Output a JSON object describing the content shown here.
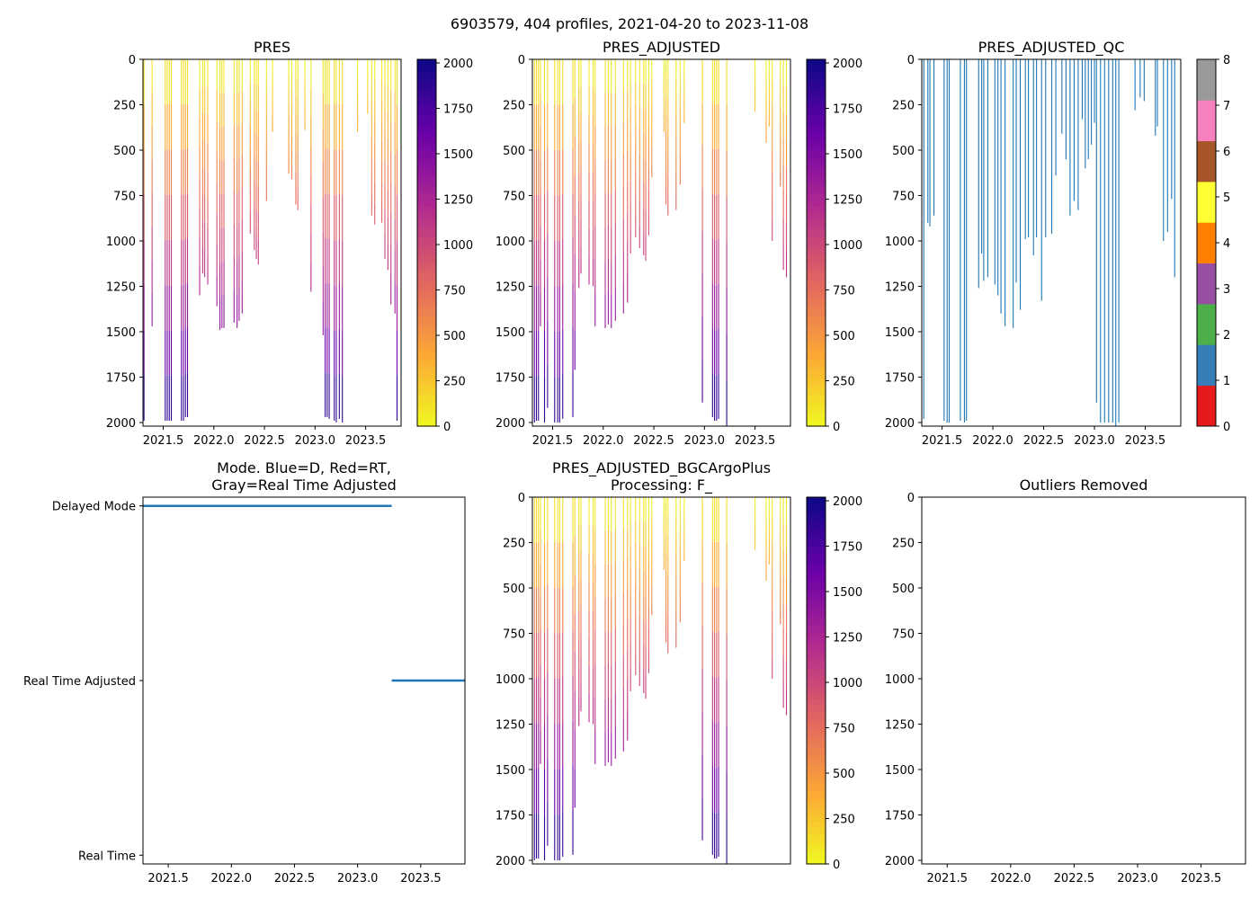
{
  "figure": {
    "suptitle": "6903579, 404 profiles, 2021-04-20 to 2023-11-08"
  },
  "colors": {
    "frame": "#000000",
    "mode_line": "#1f77b4",
    "qc_profile": "#1f77b4",
    "plasma_stops": [
      "#f0f921",
      "#fca636",
      "#e16462",
      "#b12a90",
      "#6a00a8",
      "#0d0887"
    ],
    "qc_colors": [
      "#e41a1c",
      "#377eb8",
      "#4daf4a",
      "#984ea3",
      "#ff7f00",
      "#ffff33",
      "#a65628",
      "#f781bf",
      "#999999"
    ]
  },
  "chart_data": [
    {
      "id": "pres",
      "type": "heatmap",
      "title": "PRES",
      "xlim": [
        2021.3,
        2023.85
      ],
      "ylim": [
        2020,
        0
      ],
      "xticks": [
        2021.5,
        2022.0,
        2022.5,
        2023.0,
        2023.5
      ],
      "xtick_labels": [
        "2021.5",
        "2022.0",
        "2022.5",
        "2023.0",
        "2023.5"
      ],
      "yticks": [
        0,
        250,
        500,
        750,
        1000,
        1250,
        1500,
        1750,
        2000
      ],
      "ytick_labels": [
        "0",
        "250",
        "500",
        "750",
        "1000",
        "1250",
        "1500",
        "1750",
        "2000"
      ],
      "profiles": {
        "t": [
          2021.31,
          2021.39,
          2021.52,
          2021.54,
          2021.56,
          2021.58,
          2021.68,
          2021.7,
          2021.72,
          2021.74,
          2021.86,
          2021.89,
          2021.91,
          2021.94,
          2022.03,
          2022.06,
          2022.08,
          2022.1,
          2022.2,
          2022.23,
          2022.25,
          2022.28,
          2022.36,
          2022.4,
          2022.42,
          2022.44,
          2022.52,
          2022.58,
          2022.74,
          2022.77,
          2022.81,
          2022.83,
          2022.9,
          2022.96,
          2023.08,
          2023.1,
          2023.12,
          2023.14,
          2023.19,
          2023.21,
          2023.24,
          2023.27,
          2023.42,
          2023.52,
          2023.56,
          2023.59,
          2023.66,
          2023.69,
          2023.72,
          2023.75,
          2023.79,
          2023.81
        ],
        "depth": [
          1990,
          1470,
          1990,
          1990,
          1990,
          1990,
          1990,
          1990,
          1970,
          1970,
          1300,
          1180,
          1200,
          1240,
          1360,
          1490,
          1480,
          1480,
          1450,
          1480,
          1440,
          1400,
          960,
          1050,
          1100,
          1130,
          780,
          400,
          630,
          660,
          800,
          830,
          390,
          1280,
          1520,
          1970,
          1970,
          1980,
          1990,
          2000,
          1980,
          2000,
          400,
          300,
          860,
          910,
          900,
          1100,
          1160,
          1350,
          1400,
          1990
        ]
      },
      "colorbar": {
        "kind": "continuous",
        "range": [
          0,
          2020
        ],
        "ticks": [
          0,
          250,
          500,
          750,
          1000,
          1250,
          1500,
          1750,
          2000
        ],
        "tick_labels": [
          "0",
          "250",
          "500",
          "750",
          "1000",
          "1250",
          "1500",
          "1750",
          "2000"
        ]
      }
    },
    {
      "id": "pres_adj",
      "type": "heatmap",
      "title": "PRES_ADJUSTED",
      "xlim": [
        2021.3,
        2023.85
      ],
      "ylim": [
        2020,
        0
      ],
      "xticks": [
        2021.5,
        2022.0,
        2022.5,
        2023.0,
        2023.5
      ],
      "xtick_labels": [
        "2021.5",
        "2022.0",
        "2022.5",
        "2023.0",
        "2023.5"
      ],
      "yticks": [
        0,
        250,
        500,
        750,
        1000,
        1250,
        1500,
        1750,
        2000
      ],
      "ytick_labels": [
        "0",
        "250",
        "500",
        "750",
        "1000",
        "1250",
        "1500",
        "1750",
        "2000"
      ],
      "profiles": {
        "t": [
          2021.32,
          2021.34,
          2021.36,
          2021.38,
          2021.42,
          2021.45,
          2021.52,
          2021.55,
          2021.57,
          2021.6,
          2021.7,
          2021.72,
          2021.76,
          2021.78,
          2021.86,
          2021.9,
          2021.92,
          2022.02,
          2022.05,
          2022.08,
          2022.12,
          2022.2,
          2022.24,
          2022.27,
          2022.32,
          2022.36,
          2022.4,
          2022.42,
          2022.45,
          2022.48,
          2022.6,
          2022.62,
          2022.64,
          2022.72,
          2022.76,
          2022.8,
          2022.98,
          2023.08,
          2023.1,
          2023.12,
          2023.14,
          2023.22,
          2023.5,
          2023.61,
          2023.64,
          2023.67,
          2023.75,
          2023.78,
          2023.81
        ],
        "depth": [
          2000,
          1990,
          1990,
          1470,
          2000,
          1920,
          2000,
          2000,
          2000,
          1980,
          1970,
          1710,
          1260,
          1180,
          1240,
          1250,
          1470,
          1480,
          1460,
          1480,
          1440,
          1400,
          1340,
          1070,
          980,
          1040,
          1080,
          1110,
          970,
          650,
          400,
          800,
          860,
          830,
          690,
          350,
          1890,
          1970,
          1990,
          1990,
          1980,
          2020,
          290,
          460,
          370,
          1000,
          700,
          1160,
          1200
        ]
      },
      "colorbar": {
        "kind": "continuous",
        "range": [
          0,
          2020
        ],
        "ticks": [
          0,
          250,
          500,
          750,
          1000,
          1250,
          1500,
          1750,
          2000
        ],
        "tick_labels": [
          "0",
          "250",
          "500",
          "750",
          "1000",
          "1250",
          "1500",
          "1750",
          "2000"
        ]
      }
    },
    {
      "id": "pres_qc",
      "type": "heatmap",
      "title": "PRES_ADJUSTED_QC",
      "xlim": [
        2021.3,
        2023.85
      ],
      "ylim": [
        2020,
        0
      ],
      "xticks": [
        2021.5,
        2022.0,
        2022.5,
        2023.0,
        2023.5
      ],
      "xtick_labels": [
        "2021.5",
        "2022.0",
        "2022.5",
        "2023.0",
        "2023.5"
      ],
      "yticks": [
        0,
        250,
        500,
        750,
        1000,
        1250,
        1500,
        1750,
        2000
      ],
      "ytick_labels": [
        "0",
        "250",
        "500",
        "750",
        "1000",
        "1250",
        "1500",
        "1750",
        "2000"
      ],
      "profiles": {
        "t": [
          2021.32,
          2021.36,
          2021.38,
          2021.42,
          2021.52,
          2021.55,
          2021.57,
          2021.68,
          2021.72,
          2021.74,
          2021.86,
          2021.89,
          2021.91,
          2021.95,
          2022.02,
          2022.05,
          2022.08,
          2022.12,
          2022.2,
          2022.23,
          2022.27,
          2022.32,
          2022.35,
          2022.4,
          2022.43,
          2022.48,
          2022.52,
          2022.58,
          2022.62,
          2022.68,
          2022.72,
          2022.76,
          2022.8,
          2022.84,
          2022.88,
          2022.91,
          2022.94,
          2022.97,
          2023.0,
          2023.02,
          2023.06,
          2023.1,
          2023.14,
          2023.18,
          2023.21,
          2023.24,
          2023.4,
          2023.45,
          2023.49,
          2023.6,
          2023.62,
          2023.68,
          2023.72,
          2023.76,
          2023.79
        ],
        "depth": [
          1980,
          900,
          920,
          860,
          1990,
          2000,
          2000,
          1990,
          2000,
          1990,
          1260,
          1070,
          1220,
          1200,
          1240,
          1300,
          1400,
          1470,
          1480,
          1230,
          1380,
          990,
          980,
          1080,
          980,
          1330,
          980,
          960,
          640,
          410,
          550,
          860,
          780,
          830,
          330,
          600,
          550,
          470,
          350,
          1890,
          2000,
          2000,
          2000,
          2000,
          2020,
          2000,
          280,
          210,
          230,
          420,
          370,
          1000,
          950,
          770,
          1200
        ]
      },
      "colorbar": {
        "kind": "discrete",
        "range": [
          0,
          8
        ],
        "ticks": [
          0,
          1,
          2,
          3,
          4,
          5,
          6,
          7,
          8
        ],
        "tick_labels": [
          "0",
          "1",
          "2",
          "3",
          "4",
          "5",
          "6",
          "7",
          "8"
        ]
      }
    },
    {
      "id": "mode",
      "type": "line",
      "title_lines": [
        "Mode. Blue=D, Red=RT,",
        "Gray=Real Time Adjusted"
      ],
      "xlim": [
        2021.3,
        2023.85
      ],
      "xticks": [
        2021.5,
        2022.0,
        2022.5,
        2023.0,
        2023.5
      ],
      "xtick_labels": [
        "2021.5",
        "2022.0",
        "2022.5",
        "2023.0",
        "2023.5"
      ],
      "ycategories": [
        "Real Time",
        "Real Time Adjusted",
        "Delayed Mode"
      ],
      "ylim": [
        -0.05,
        2.05
      ],
      "series": [
        {
          "name": "Delayed Mode",
          "x": [
            2021.3,
            2023.27
          ],
          "y": [
            2,
            2
          ]
        },
        {
          "name": "Real Time Adjusted",
          "x": [
            2023.27,
            2023.85
          ],
          "y": [
            1,
            1
          ]
        }
      ]
    },
    {
      "id": "bgc",
      "type": "heatmap",
      "title_lines": [
        "PRES_ADJUSTED_BGCArgoPlus",
        "Processing: F_"
      ],
      "xlim": [
        2021.3,
        2023.85
      ],
      "ylim": [
        2020,
        0
      ],
      "xticks": [],
      "xtick_labels": [],
      "yticks": [
        0,
        250,
        500,
        750,
        1000,
        1250,
        1500,
        1750,
        2000
      ],
      "ytick_labels": [
        "0",
        "250",
        "500",
        "750",
        "1000",
        "1250",
        "1500",
        "1750",
        "2000"
      ],
      "profiles": {
        "t": [
          2021.32,
          2021.34,
          2021.36,
          2021.38,
          2021.42,
          2021.45,
          2021.52,
          2021.55,
          2021.57,
          2021.6,
          2021.7,
          2021.72,
          2021.76,
          2021.78,
          2021.86,
          2021.9,
          2021.92,
          2022.02,
          2022.05,
          2022.08,
          2022.12,
          2022.2,
          2022.24,
          2022.27,
          2022.32,
          2022.36,
          2022.4,
          2022.42,
          2022.45,
          2022.48,
          2022.6,
          2022.62,
          2022.64,
          2022.72,
          2022.76,
          2022.8,
          2022.98,
          2023.08,
          2023.1,
          2023.12,
          2023.14,
          2023.22,
          2023.5,
          2023.61,
          2023.64,
          2023.67,
          2023.75,
          2023.78,
          2023.81
        ],
        "depth": [
          2000,
          1990,
          1990,
          1470,
          2000,
          1920,
          2000,
          2000,
          2000,
          1980,
          1970,
          1710,
          1260,
          1180,
          1240,
          1250,
          1470,
          1480,
          1460,
          1480,
          1440,
          1400,
          1340,
          1070,
          980,
          1040,
          1080,
          1110,
          970,
          650,
          400,
          800,
          860,
          830,
          690,
          350,
          1890,
          1970,
          1990,
          1990,
          1980,
          2020,
          290,
          460,
          370,
          1000,
          700,
          1160,
          1200
        ]
      },
      "colorbar": {
        "kind": "continuous",
        "range": [
          0,
          2020
        ],
        "ticks": [
          0,
          250,
          500,
          750,
          1000,
          1250,
          1500,
          1750,
          2000
        ],
        "tick_labels": [
          "0",
          "250",
          "500",
          "750",
          "1000",
          "1250",
          "1500",
          "1750",
          "2000"
        ]
      }
    },
    {
      "id": "outliers",
      "type": "scatter",
      "title": "Outliers Removed",
      "xlim": [
        2021.3,
        2023.85
      ],
      "ylim": [
        2020,
        0
      ],
      "xticks": [
        2021.5,
        2022.0,
        2022.5,
        2023.0,
        2023.5
      ],
      "xtick_labels": [
        "2021.5",
        "2022.0",
        "2022.5",
        "2023.0",
        "2023.5"
      ],
      "yticks": [
        0,
        250,
        500,
        750,
        1000,
        1250,
        1500,
        1750,
        2000
      ],
      "ytick_labels": [
        "0",
        "250",
        "500",
        "750",
        "1000",
        "1250",
        "1500",
        "1750",
        "2000"
      ],
      "points": []
    }
  ]
}
